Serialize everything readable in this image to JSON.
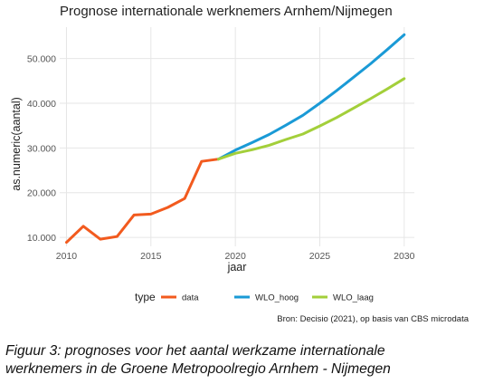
{
  "chart_data": {
    "type": "line",
    "title": "Prognose internationale werknemers Arnhem/Nijmegen",
    "xlabel": "jaar",
    "ylabel": "as.numeric(aantal)",
    "xlim": [
      2009.6,
      2030.6
    ],
    "ylim": [
      8000,
      57000
    ],
    "x_ticks": [
      2010,
      2015,
      2020,
      2025,
      2030
    ],
    "x_tick_labels": [
      "2010",
      "2015",
      "2020",
      "2025",
      "2030"
    ],
    "y_ticks": [
      10000,
      20000,
      30000,
      40000,
      50000
    ],
    "y_tick_labels": [
      "10.000",
      "20.000",
      "30.000",
      "40.000",
      "50.000"
    ],
    "grid": true,
    "legend": {
      "title": "type",
      "placement": "bottom",
      "entries": [
        "data",
        "WLO_hoog",
        "WLO_laag"
      ]
    },
    "series": [
      {
        "name": "data",
        "color": "#f25a1e",
        "x": [
          2010,
          2011,
          2012,
          2013,
          2014,
          2015,
          2016,
          2017,
          2018,
          2019
        ],
        "y": [
          8900,
          12500,
          9600,
          10200,
          15000,
          15200,
          16700,
          18700,
          27000,
          27500
        ]
      },
      {
        "name": "WLO_hoog",
        "color": "#1a9ad6",
        "x": [
          2019,
          2020,
          2021,
          2022,
          2023,
          2024,
          2025,
          2026,
          2027,
          2028,
          2029,
          2030
        ],
        "y": [
          27500,
          29500,
          31200,
          33000,
          35100,
          37300,
          40000,
          42800,
          45800,
          48800,
          52000,
          55300
        ]
      },
      {
        "name": "WLO_laag",
        "color": "#a3cf3a",
        "x": [
          2019,
          2020,
          2021,
          2022,
          2023,
          2024,
          2025,
          2026,
          2027,
          2028,
          2029,
          2030
        ],
        "y": [
          27500,
          28800,
          29600,
          30600,
          31900,
          33100,
          34900,
          36800,
          38900,
          41000,
          43200,
          45500
        ]
      }
    ],
    "source_note": "Bron: Decisio (2021), op basis van CBS microdata"
  },
  "caption": {
    "line1": "Figuur 3: prognoses voor het aantal werkzame internationale",
    "line2": "werknemers in de Groene Metropoolregio Arnhem - Nijmegen"
  }
}
